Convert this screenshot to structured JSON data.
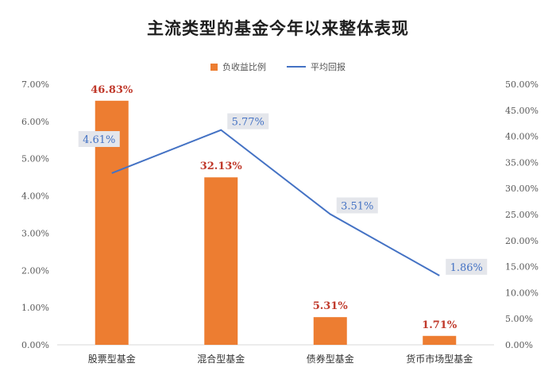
{
  "chart_data": {
    "type": "bar+line",
    "title": "主流类型的基金今年以来整体表现",
    "categories": [
      "股票型基金",
      "混合型基金",
      "债券型基金",
      "货币市场型基金"
    ],
    "series": [
      {
        "name": "负收益比例",
        "type": "bar",
        "axis": "right",
        "values": [
          46.83,
          32.13,
          5.31,
          1.71
        ],
        "labels": [
          "46.83%",
          "32.13%",
          "5.31%",
          "1.71%"
        ]
      },
      {
        "name": "平均回报",
        "type": "line",
        "axis": "left",
        "values": [
          4.61,
          5.77,
          3.51,
          1.86
        ],
        "labels": [
          "4.61%",
          "5.77%",
          "3.51%",
          "1.86%"
        ]
      }
    ],
    "left_axis": {
      "ylim": [
        0,
        7
      ],
      "ticks": [
        "0.00%",
        "1.00%",
        "2.00%",
        "3.00%",
        "4.00%",
        "5.00%",
        "6.00%",
        "7.00%"
      ]
    },
    "right_axis": {
      "ylim": [
        0,
        50
      ],
      "ticks": [
        "0.00%",
        "5.00%",
        "10.00%",
        "15.00%",
        "20.00%",
        "25.00%",
        "30.00%",
        "35.00%",
        "40.00%",
        "45.00%",
        "50.00%"
      ]
    },
    "grid": false,
    "legend": "top-center",
    "colors": {
      "bar": "#ED7D31",
      "line": "#4472C4",
      "bar_label": "#C0392B",
      "line_label_bg": "#E4E6EB"
    }
  }
}
